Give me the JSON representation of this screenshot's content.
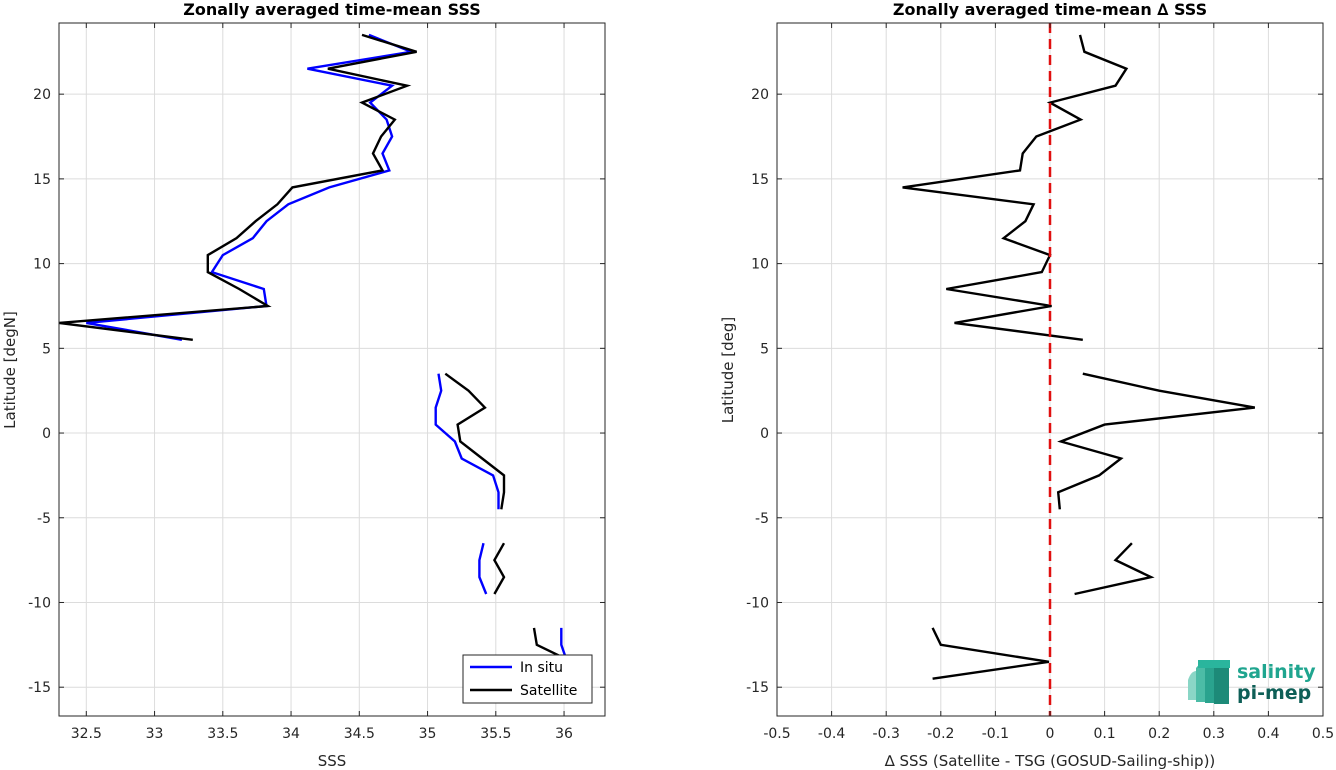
{
  "colors": {
    "insitu": "#0000ff",
    "satellite": "#000000",
    "zero_line": "#e01010",
    "logo_teal": "#1fa58f",
    "logo_dark": "#0e5f57"
  },
  "logo": {
    "line1": "salinity",
    "line2": "pi-mep"
  },
  "chart_data": [
    {
      "type": "line",
      "title": "Zonally averaged time-mean SSS",
      "xlabel": "SSS",
      "ylabel": "Latitude [degN]",
      "xlim": [
        32.3,
        36.3
      ],
      "ylim": [
        -16.7,
        24.2
      ],
      "xticks": [
        32.5,
        33,
        33.5,
        34,
        34.5,
        35,
        35.5,
        36
      ],
      "xtick_labels": [
        "32.5",
        "33",
        "33.5",
        "34",
        "34.5",
        "35",
        "35.5",
        "36"
      ],
      "yticks": [
        -15,
        -10,
        -5,
        0,
        5,
        10,
        15,
        20
      ],
      "ytick_labels": [
        "-15",
        "-10",
        "-5",
        "0",
        "5",
        "10",
        "15",
        "20"
      ],
      "grid": true,
      "legend": {
        "location": "bottom-right",
        "entries": [
          "In situ",
          "Satellite"
        ]
      },
      "series": [
        {
          "name": "In situ",
          "segments": [
            [
              [
                34.57,
                23.5
              ],
              [
                34.88,
                22.5
              ],
              [
                34.12,
                21.5
              ],
              [
                34.74,
                20.5
              ],
              [
                34.58,
                19.5
              ],
              [
                34.7,
                18.5
              ],
              [
                34.74,
                17.5
              ],
              [
                34.67,
                16.5
              ],
              [
                34.72,
                15.5
              ],
              [
                34.28,
                14.5
              ],
              [
                33.98,
                13.5
              ],
              [
                33.82,
                12.5
              ],
              [
                33.72,
                11.5
              ],
              [
                33.5,
                10.5
              ],
              [
                33.42,
                9.5
              ],
              [
                33.8,
                8.5
              ],
              [
                33.82,
                7.5
              ],
              [
                32.5,
                6.5
              ],
              [
                33.2,
                5.5
              ]
            ],
            [
              [
                35.08,
                3.5
              ],
              [
                35.1,
                2.5
              ],
              [
                35.06,
                1.5
              ],
              [
                35.06,
                0.5
              ],
              [
                35.2,
                -0.5
              ],
              [
                35.25,
                -1.5
              ],
              [
                35.48,
                -2.5
              ],
              [
                35.52,
                -3.5
              ],
              [
                35.52,
                -4.5
              ]
            ],
            [
              [
                35.41,
                -6.5
              ],
              [
                35.38,
                -7.5
              ],
              [
                35.38,
                -8.5
              ],
              [
                35.43,
                -9.5
              ]
            ],
            [
              [
                35.98,
                -11.5
              ],
              [
                35.98,
                -12.5
              ],
              [
                36.01,
                -13.2
              ]
            ]
          ]
        },
        {
          "name": "Satellite",
          "segments": [
            [
              [
                34.52,
                23.5
              ],
              [
                34.92,
                22.5
              ],
              [
                34.27,
                21.5
              ],
              [
                34.85,
                20.5
              ],
              [
                34.52,
                19.5
              ],
              [
                34.76,
                18.5
              ],
              [
                34.66,
                17.5
              ],
              [
                34.6,
                16.5
              ],
              [
                34.67,
                15.5
              ],
              [
                34.01,
                14.5
              ],
              [
                33.9,
                13.5
              ],
              [
                33.74,
                12.5
              ],
              [
                33.6,
                11.5
              ],
              [
                33.39,
                10.5
              ],
              [
                33.39,
                9.5
              ],
              [
                33.62,
                8.5
              ],
              [
                33.83,
                7.5
              ],
              [
                32.3,
                6.5
              ],
              [
                33.28,
                5.5
              ]
            ],
            [
              [
                35.13,
                3.5
              ],
              [
                35.3,
                2.5
              ],
              [
                35.42,
                1.5
              ],
              [
                35.22,
                0.5
              ],
              [
                35.24,
                -0.5
              ],
              [
                35.4,
                -1.5
              ],
              [
                35.56,
                -2.5
              ],
              [
                35.56,
                -3.5
              ],
              [
                35.54,
                -4.5
              ]
            ],
            [
              [
                35.56,
                -6.5
              ],
              [
                35.49,
                -7.5
              ],
              [
                35.56,
                -8.5
              ],
              [
                35.49,
                -9.5
              ]
            ],
            [
              [
                35.78,
                -11.5
              ],
              [
                35.8,
                -12.5
              ],
              [
                35.98,
                -13.2
              ]
            ]
          ]
        }
      ]
    },
    {
      "type": "line",
      "title": "Zonally averaged time-mean ∆ SSS",
      "xlabel": "∆ SSS (Satellite - TSG (GOSUD-Sailing-ship))",
      "ylabel": "Latitude [deg]",
      "xlim": [
        -0.5,
        0.5
      ],
      "ylim": [
        -16.7,
        24.2
      ],
      "xticks": [
        -0.5,
        -0.4,
        -0.3,
        -0.2,
        -0.1,
        0,
        0.1,
        0.2,
        0.3,
        0.4,
        0.5
      ],
      "xtick_labels": [
        "-0.5",
        "-0.4",
        "-0.3",
        "-0.2",
        "-0.1",
        "0",
        "0.1",
        "0.2",
        "0.3",
        "0.4",
        "0.5"
      ],
      "yticks": [
        -15,
        -10,
        -5,
        0,
        5,
        10,
        15,
        20
      ],
      "ytick_labels": [
        "-15",
        "-10",
        "-5",
        "0",
        "5",
        "10",
        "15",
        "20"
      ],
      "grid": true,
      "reference_line": {
        "x": 0,
        "style": "dashed"
      },
      "series": [
        {
          "name": "",
          "segments": [
            [
              [
                0.055,
                23.5
              ],
              [
                0.063,
                22.5
              ],
              [
                0.14,
                21.5
              ],
              [
                0.12,
                20.5
              ],
              [
                0,
                19.5
              ],
              [
                0.056,
                18.5
              ],
              [
                -0.025,
                17.5
              ],
              [
                -0.05,
                16.5
              ],
              [
                -0.055,
                15.5
              ],
              [
                -0.27,
                14.5
              ],
              [
                -0.03,
                13.5
              ],
              [
                -0.045,
                12.5
              ],
              [
                -0.085,
                11.5
              ],
              [
                0,
                10.5
              ],
              [
                -0.015,
                9.5
              ],
              [
                -0.19,
                8.5
              ],
              [
                0.003,
                7.5
              ],
              [
                -0.175,
                6.5
              ],
              [
                0.06,
                5.5
              ]
            ],
            [
              [
                0.06,
                3.5
              ],
              [
                0.2,
                2.5
              ],
              [
                0.375,
                1.5
              ],
              [
                0.1,
                0.5
              ],
              [
                0.02,
                -0.5
              ],
              [
                0.13,
                -1.5
              ],
              [
                0.09,
                -2.5
              ],
              [
                0.015,
                -3.5
              ],
              [
                0.018,
                -4.5
              ]
            ],
            [
              [
                0.15,
                -6.5
              ],
              [
                0.12,
                -7.5
              ],
              [
                0.185,
                -8.5
              ],
              [
                0.045,
                -9.5
              ]
            ],
            [
              [
                -0.215,
                -11.5
              ],
              [
                -0.2,
                -12.5
              ],
              [
                -0.002,
                -13.5
              ],
              [
                -0.215,
                -14.5
              ]
            ]
          ]
        }
      ]
    }
  ]
}
